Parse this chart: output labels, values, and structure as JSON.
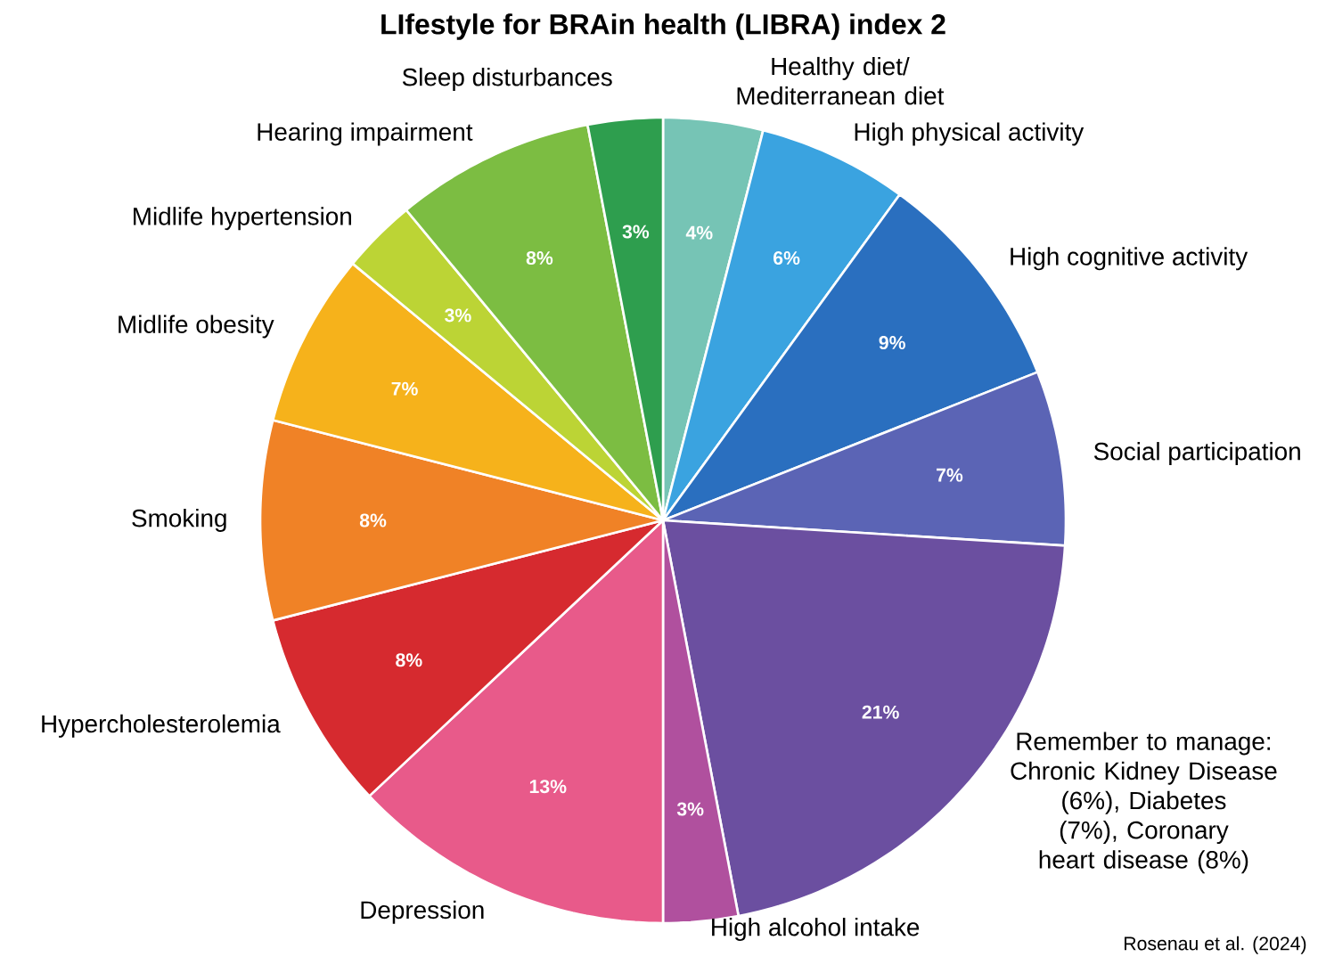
{
  "chart_data": {
    "type": "pie",
    "title": "LIfestyle for BRAin health (LIBRA) index 2",
    "categories": [
      "Healthy diet/ Mediterranean diet",
      "High physical activity",
      "High cognitive activity",
      "Social participation",
      "Remember to manage: Chronic Kidney Disease (6%), Diabetes (7%), Coronary heart disease (8%)",
      "High alcohol intake",
      "Depression",
      "Hypercholesterolemia",
      "Smoking",
      "Midlife obesity",
      "Midlife hypertension",
      "Hearing impairment",
      "Sleep disturbances"
    ],
    "values": [
      4,
      6,
      9,
      7,
      21,
      3,
      13,
      8,
      8,
      7,
      3,
      8,
      3
    ],
    "value_labels": [
      "4%",
      "6%",
      "9%",
      "7%",
      "21%",
      "3%",
      "13%",
      "8%",
      "8%",
      "7%",
      "3%",
      "8%",
      "3%"
    ],
    "colors": [
      "#76c4b5",
      "#3aa3e0",
      "#2a6fbf",
      "#5b64b5",
      "#6b4fa0",
      "#b0509e",
      "#e85a8a",
      "#d62a2f",
      "#f08226",
      "#f6b21b",
      "#bcd435",
      "#7cbd42",
      "#2e9e4e"
    ],
    "annotations": [
      "Rosenau et al. (2024)"
    ]
  }
}
